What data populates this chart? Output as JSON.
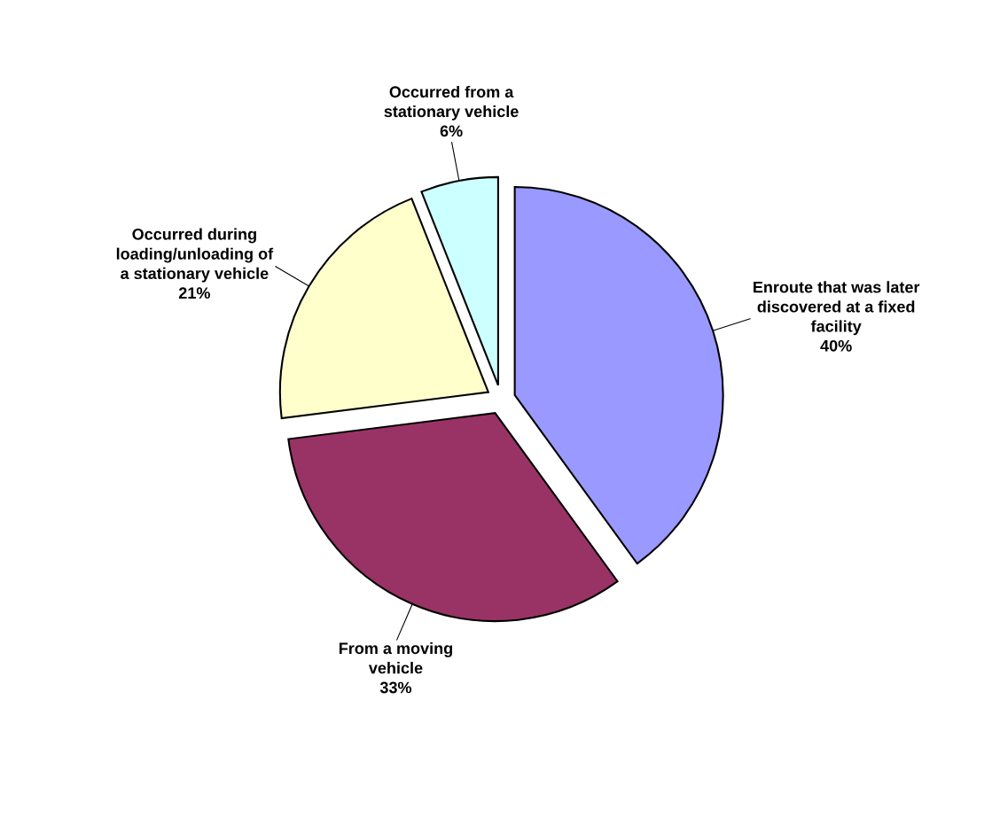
{
  "chart_data": {
    "type": "pie",
    "categories": [
      "Enroute that was later\ndiscovered at a fixed\nfacility",
      "From a moving\nvehicle",
      "Occurred during\nloading/unloading of\na stationary vehicle",
      "Occurred from a\nstationary vehicle"
    ],
    "values": [
      40,
      33,
      21,
      6
    ],
    "value_labels": [
      "40%",
      "33%",
      "21%",
      "6%"
    ],
    "colors": [
      "#9999ff",
      "#993366",
      "#ffffcc",
      "#ccffff"
    ]
  }
}
